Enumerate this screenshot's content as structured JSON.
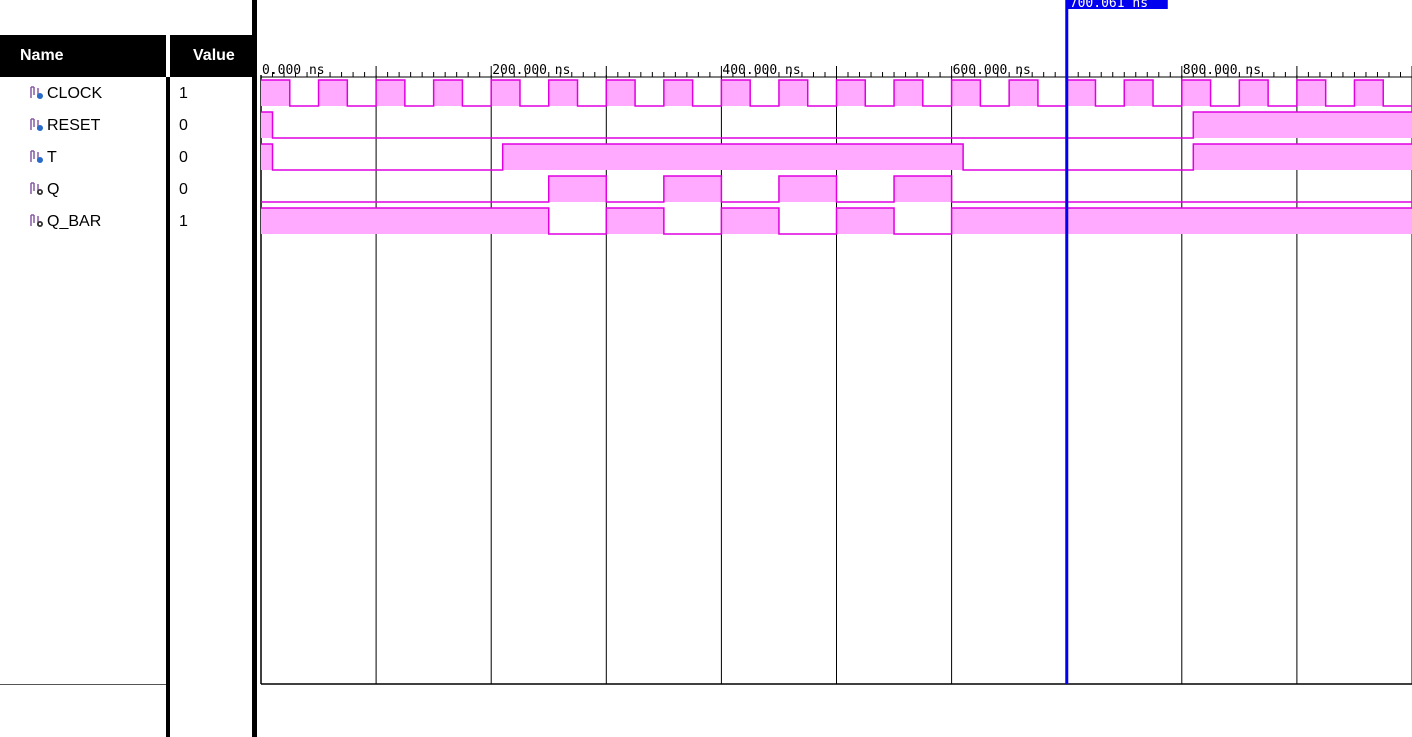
{
  "columns": {
    "name": "Name",
    "value": "Value"
  },
  "signals": [
    {
      "name": "CLOCK",
      "value": "1",
      "type": "input"
    },
    {
      "name": "RESET",
      "value": "0",
      "type": "input"
    },
    {
      "name": "T",
      "value": "0",
      "type": "input"
    },
    {
      "name": "Q",
      "value": "0",
      "type": "output"
    },
    {
      "name": "Q_BAR",
      "value": "1",
      "type": "output"
    }
  ],
  "timeline": {
    "tick_labels": [
      "0.000 ns",
      "200.000 ns",
      "400.000 ns",
      "600.000 ns",
      "800.000 ns"
    ],
    "start_ns": 0,
    "end_ns": 1000,
    "major_every_ns": 100
  },
  "cursor": {
    "label": "700.061 ns",
    "time_ns": 700.061
  },
  "waveforms": {
    "CLOCK": {
      "clock_period_ns": 50,
      "clock_high_at_start": true
    },
    "RESET": {
      "initial": 1,
      "changes_ns": [
        10,
        810
      ]
    },
    "T": {
      "initial": 1,
      "changes_ns": [
        10,
        210,
        610,
        810
      ]
    },
    "Q": {
      "initial": 0,
      "changes_ns": [
        250,
        300,
        350,
        400,
        450,
        500,
        550,
        600
      ]
    },
    "Q_BAR": {
      "initial": 1,
      "changes_ns": [
        250,
        300,
        350,
        400,
        450,
        500,
        550,
        600
      ]
    }
  },
  "colors": {
    "wave_fill": "#ffaaff",
    "wave_line": "#e000e0",
    "cursor": "#0000ee",
    "grid": "#000000"
  }
}
